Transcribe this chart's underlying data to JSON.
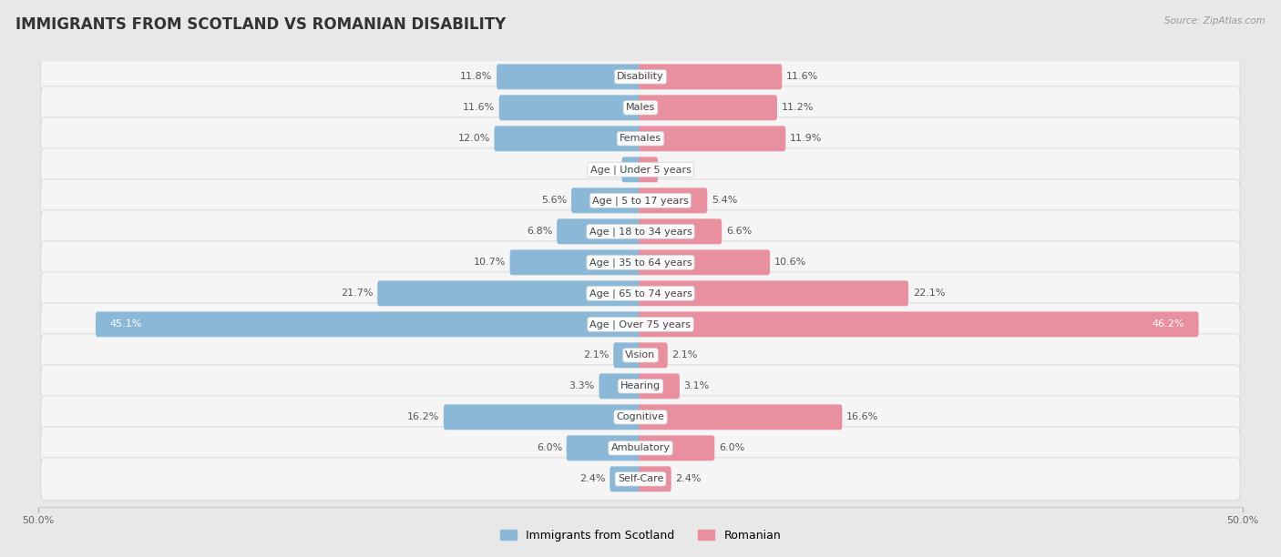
{
  "title": "IMMIGRANTS FROM SCOTLAND VS ROMANIAN DISABILITY",
  "source": "Source: ZipAtlas.com",
  "categories": [
    "Disability",
    "Males",
    "Females",
    "Age | Under 5 years",
    "Age | 5 to 17 years",
    "Age | 18 to 34 years",
    "Age | 35 to 64 years",
    "Age | 65 to 74 years",
    "Age | Over 75 years",
    "Vision",
    "Hearing",
    "Cognitive",
    "Ambulatory",
    "Self-Care"
  ],
  "left_values": [
    11.8,
    11.6,
    12.0,
    1.4,
    5.6,
    6.8,
    10.7,
    21.7,
    45.1,
    2.1,
    3.3,
    16.2,
    6.0,
    2.4
  ],
  "right_values": [
    11.6,
    11.2,
    11.9,
    1.3,
    5.4,
    6.6,
    10.6,
    22.1,
    46.2,
    2.1,
    3.1,
    16.6,
    6.0,
    2.4
  ],
  "left_color": "#8cb8d8",
  "right_color": "#e8909f",
  "axis_max": 50.0,
  "background_color": "#e8e8e8",
  "row_bg_color": "#f5f5f5",
  "title_fontsize": 12,
  "label_fontsize": 8,
  "value_fontsize": 8,
  "legend_label_left": "Immigrants from Scotland",
  "legend_label_right": "Romanian"
}
